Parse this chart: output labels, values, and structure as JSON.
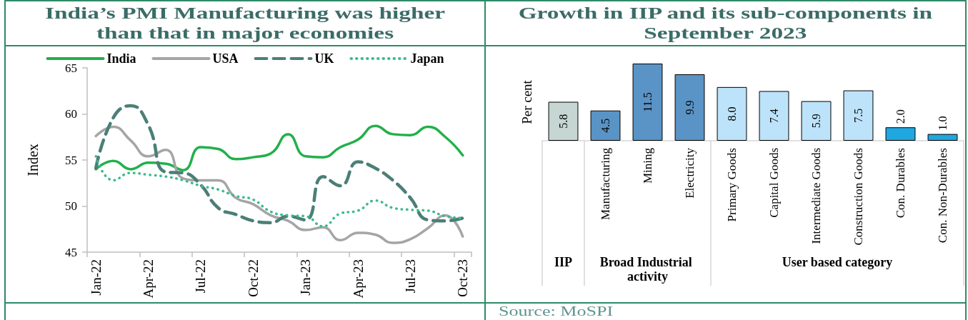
{
  "chart_data": [
    {
      "type": "line",
      "title": "India’s PMI Manufacturing was higher than that in major economies",
      "ylabel": "Index",
      "categories": [
        "Jan-22",
        null,
        null,
        "Apr-22",
        null,
        null,
        "Jul-22",
        null,
        null,
        "Oct-22",
        null,
        null,
        "Jan-23",
        null,
        null,
        "Apr-23",
        null,
        null,
        "Jul-23",
        null,
        null,
        "Oct-23"
      ],
      "series": [
        {
          "name": "India",
          "color": "#22b04b",
          "line_style": "solid",
          "values": [
            54.0,
            54.9,
            54.0,
            54.7,
            54.6,
            53.9,
            56.4,
            56.2,
            55.1,
            55.3,
            55.7,
            57.8,
            55.4,
            55.3,
            56.4,
            57.2,
            58.7,
            57.8,
            57.7,
            58.6,
            57.5,
            55.5
          ]
        },
        {
          "name": "USA",
          "color": "#a5a5a5",
          "line_style": "solid",
          "values": [
            57.6,
            58.6,
            57.1,
            55.4,
            56.1,
            53.0,
            52.8,
            52.8,
            50.9,
            50.2,
            49.0,
            48.4,
            47.4,
            47.7,
            46.3,
            47.1,
            46.9,
            46.0,
            46.4,
            47.6,
            49.0,
            46.7
          ]
        },
        {
          "name": "UK",
          "color": "#4b7f77",
          "line_style": "dashed",
          "values": [
            54.1,
            59.6,
            60.9,
            58.8,
            53.7,
            53.6,
            52.3,
            49.8,
            49.1,
            48.4,
            48.2,
            48.9,
            48.5,
            53.2,
            52.2,
            54.8,
            54.1,
            52.8,
            50.9,
            48.5,
            48.4,
            48.7
          ]
        },
        {
          "name": "Japan",
          "color": "#3dbb8b",
          "line_style": "dotted",
          "values": [
            55.4,
            52.8,
            53.6,
            53.4,
            53.2,
            52.8,
            52.2,
            51.8,
            51.1,
            50.7,
            49.4,
            49.0,
            48.9,
            47.8,
            49.2,
            49.5,
            50.6,
            49.8,
            49.6,
            49.5,
            48.9,
            48.7
          ]
        }
      ],
      "ylim": [
        45,
        65
      ],
      "yticks": [
        45,
        50,
        55,
        60,
        65
      ],
      "grid": false,
      "legend": "top",
      "marker": "none"
    },
    {
      "type": "bar",
      "title": "Growth in IIP and its sub-components in September 2023",
      "ylabel": "Per cent",
      "categories": [
        null,
        "Manufacturing",
        "Mining",
        "Electricity",
        "Primary Goods",
        "Capital Goods",
        "Intermediate Goods",
        "Construction Goods",
        "Con. Durables",
        "Con. Non-Durables"
      ],
      "series": [
        {
          "color": "#c6d6d2",
          "values": [
            5.8,
            null,
            null,
            null,
            null,
            null,
            null,
            null,
            null,
            null
          ],
          "value_labels": [
            "5.8",
            null,
            null,
            null,
            null,
            null,
            null,
            null,
            null,
            null
          ]
        },
        {
          "color": "#5a93c5",
          "values": [
            null,
            4.5,
            11.5,
            9.9,
            null,
            null,
            null,
            null,
            null,
            null
          ],
          "value_labels": [
            null,
            "4.5",
            "11.5",
            "9.9",
            null,
            null,
            null,
            null,
            null,
            null
          ]
        },
        {
          "colors": [
            null,
            null,
            null,
            null,
            "#bde3fa",
            "#bde3fa",
            "#bde3fa",
            "#bde3fa",
            "#1fa7df",
            "#1fa7df"
          ],
          "values": [
            null,
            null,
            null,
            null,
            8.0,
            7.4,
            5.9,
            7.5,
            2.0,
            1.0
          ],
          "value_labels": [
            null,
            null,
            null,
            null,
            "8.0",
            "7.4",
            "5.9",
            "7.5",
            "2.0",
            "1.0"
          ]
        }
      ],
      "grid": false,
      "tick_labels": "x",
      "annotations": [
        {
          "text": "IIP"
        },
        {
          "text": "Broad Industrial activity"
        },
        {
          "text": "User based category"
        },
        "Source: MoSPI"
      ]
    }
  ]
}
